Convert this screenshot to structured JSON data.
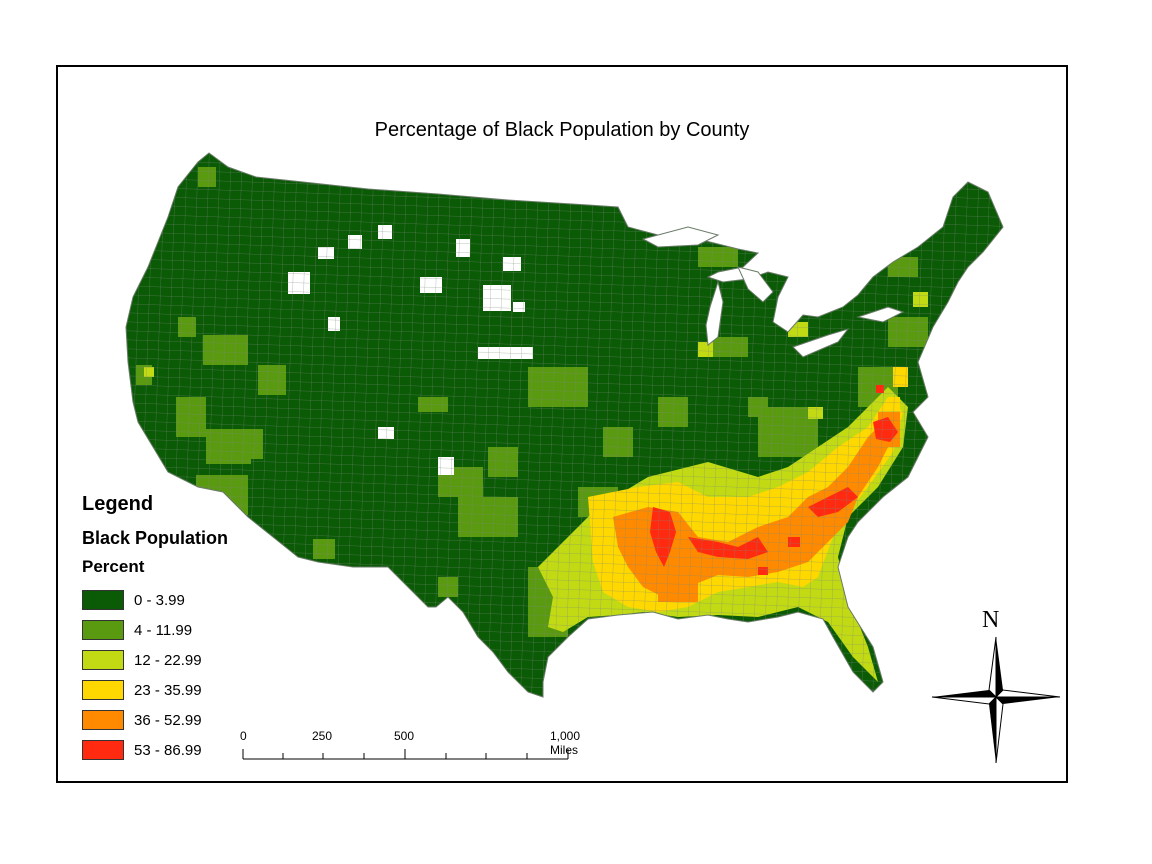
{
  "title": "Percentage of Black Population by County",
  "legend": {
    "heading": "Legend",
    "layer": "Black Population",
    "field": "Percent",
    "classes": [
      {
        "label": "0 - 3.99",
        "color": "#0a5a06"
      },
      {
        "label": "4 - 11.99",
        "color": "#5a9a10"
      },
      {
        "label": "12 - 22.99",
        "color": "#c2da14"
      },
      {
        "label": "23 - 35.99",
        "color": "#ffd800"
      },
      {
        "label": "36 - 52.99",
        "color": "#ff8a00"
      },
      {
        "label": "53 - 86.99",
        "color": "#ff2a10"
      }
    ]
  },
  "scale_bar": {
    "ticks": [
      "0",
      "250",
      "500",
      "1,000 Miles"
    ]
  },
  "north_arrow": {
    "label": "N",
    "icon": "compass-rose-icon"
  },
  "colors": {
    "frame": "#000000",
    "county_border": "#7a8a78",
    "no_data": "#ffffff"
  }
}
